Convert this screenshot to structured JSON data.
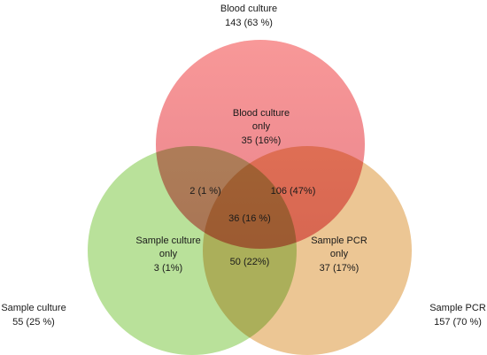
{
  "sets": [
    {
      "label": "Blood culture",
      "count": "143 (63 %)"
    },
    {
      "label": "Sample culture",
      "count": "55 (25 %)"
    },
    {
      "label": "Sample PCR",
      "count": "157 (70 %)"
    }
  ],
  "regions": [
    {
      "lines": [
        "Blood culture",
        "only",
        "35 (16%)"
      ]
    },
    {
      "lines": [
        "2 (1 %)"
      ]
    },
    {
      "lines": [
        "106 (47%)"
      ]
    },
    {
      "lines": [
        "36 (16 %)"
      ]
    },
    {
      "lines": [
        "Sample culture",
        "only",
        "3 (1%)"
      ]
    },
    {
      "lines": [
        "50 (22%)"
      ]
    },
    {
      "lines": [
        "Sample PCR",
        "only",
        "37 (17%)"
      ]
    }
  ]
}
